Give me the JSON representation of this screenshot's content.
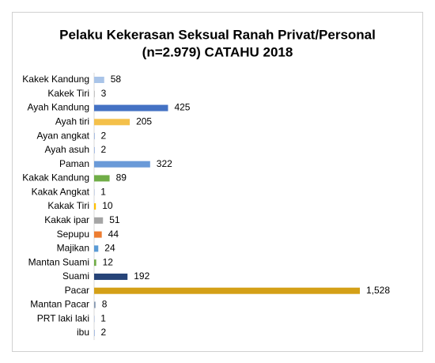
{
  "chart_data": {
    "type": "bar",
    "orientation": "horizontal",
    "title": "Pelaku Kekerasan Seksual Ranah Privat/Personal",
    "subtitle": "(n=2.979) CATAHU 2018",
    "categories": [
      "Kakek Kandung",
      "Kakek Tiri",
      "Ayah Kandung",
      "Ayah tiri",
      "Ayan angkat",
      "Ayah asuh",
      "Paman",
      "Kakak Kandung",
      "Kakak Angkat",
      "Kakak Tiri",
      "Kakak ipar",
      "Sepupu",
      "Majikan",
      "Mantan Suami",
      "Suami",
      "Pacar",
      "Mantan Pacar",
      "PRT laki laki",
      "ibu"
    ],
    "values": [
      58,
      3,
      425,
      205,
      2,
      2,
      322,
      89,
      1,
      10,
      51,
      44,
      24,
      12,
      192,
      1528,
      8,
      1,
      2
    ],
    "value_labels": [
      "58",
      "3",
      "425",
      "205",
      "2",
      "2",
      "322",
      "89",
      "1",
      "10",
      "51",
      "44",
      "24",
      "12",
      "192",
      "1,528",
      "8",
      "1",
      "2"
    ],
    "colors": [
      "#a9c4e8",
      "#a5a5a5",
      "#4472c4",
      "#f4c04a",
      "#4472c4",
      "#4472c4",
      "#6a9ad8",
      "#70ad47",
      "#4472c4",
      "#ffc000",
      "#a5a5a5",
      "#ed7d31",
      "#5b9bd5",
      "#70ad47",
      "#264478",
      "#d4a017",
      "#8497b0",
      "#4472c4",
      "#4472c4"
    ]
  }
}
